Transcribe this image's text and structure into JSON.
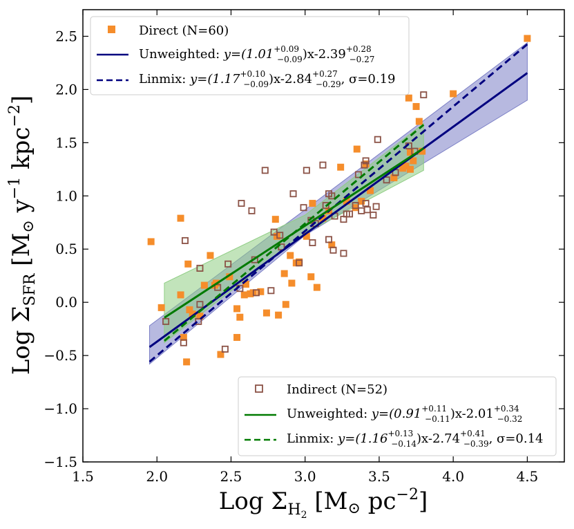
{
  "chart_data": {
    "type": "scatter",
    "xlabel": "Log Σ_H2 [M⊙ pc^-2]",
    "ylabel": "Log Σ_SFR [M⊙ y^-1 kpc^-2]",
    "xlim": [
      1.5,
      4.75
    ],
    "ylim": [
      -1.5,
      2.75
    ],
    "x_ticks": [
      1.5,
      2.0,
      2.5,
      3.0,
      3.5,
      4.0,
      4.5
    ],
    "y_ticks": [
      -1.5,
      -1.0,
      -0.5,
      0.0,
      0.5,
      1.0,
      1.5,
      2.0,
      2.5
    ],
    "x_tick_labels": [
      "1.5",
      "2.0",
      "2.5",
      "3.0",
      "3.5",
      "4.0",
      "4.5"
    ],
    "y_tick_labels": [
      "−1.5",
      "−1.0",
      "−0.5",
      "0.0",
      "0.5",
      "1.0",
      "1.5",
      "2.0",
      "2.5"
    ],
    "colors": {
      "direct": "#f58d2b",
      "indirect": "#8b5246",
      "navy": "#00007f",
      "green": "#007a00",
      "navy_band": "#7b7fc6",
      "green_band": "#8fcd84"
    },
    "series": [
      {
        "name": "Direct (N=60)",
        "marker": "filled-square",
        "points": [
          [
            1.96,
            0.57
          ],
          [
            2.03,
            -0.05
          ],
          [
            2.16,
            0.79
          ],
          [
            2.16,
            0.07
          ],
          [
            2.18,
            -0.33
          ],
          [
            2.2,
            -0.56
          ],
          [
            2.21,
            0.36
          ],
          [
            2.22,
            -0.07
          ],
          [
            2.24,
            -0.11
          ],
          [
            2.29,
            -0.13
          ],
          [
            2.32,
            0.16
          ],
          [
            2.36,
            0.44
          ],
          [
            2.39,
            0.16
          ],
          [
            2.4,
            0.18
          ],
          [
            2.43,
            -0.49
          ],
          [
            2.49,
            0.24
          ],
          [
            2.54,
            -0.33
          ],
          [
            2.54,
            -0.06
          ],
          [
            2.56,
            -0.14
          ],
          [
            2.59,
            0.07
          ],
          [
            2.6,
            0.17
          ],
          [
            2.63,
            0.08
          ],
          [
            2.65,
            0.09
          ],
          [
            2.7,
            0.1
          ],
          [
            2.74,
            -0.1
          ],
          [
            2.8,
            0.78
          ],
          [
            2.81,
            0.62
          ],
          [
            2.82,
            -0.12
          ],
          [
            2.86,
            0.27
          ],
          [
            2.87,
            -0.02
          ],
          [
            2.9,
            0.44
          ],
          [
            2.91,
            0.18
          ],
          [
            2.94,
            0.37
          ],
          [
            2.96,
            0.38
          ],
          [
            3.01,
            0.62
          ],
          [
            3.04,
            0.24
          ],
          [
            3.05,
            0.93
          ],
          [
            3.08,
            0.14
          ],
          [
            3.12,
            0.79
          ],
          [
            3.16,
            0.86
          ],
          [
            3.18,
            0.54
          ],
          [
            3.24,
            1.27
          ],
          [
            3.28,
            0.95
          ],
          [
            3.34,
            0.89
          ],
          [
            3.35,
            1.44
          ],
          [
            3.38,
            0.95
          ],
          [
            3.41,
            1.3
          ],
          [
            3.44,
            1.05
          ],
          [
            3.6,
            1.17
          ],
          [
            3.66,
            1.26
          ],
          [
            3.68,
            1.28
          ],
          [
            3.7,
            1.92
          ],
          [
            3.71,
            1.41
          ],
          [
            3.71,
            1.25
          ],
          [
            3.73,
            1.33
          ],
          [
            3.75,
            1.84
          ],
          [
            3.77,
            1.7
          ],
          [
            3.79,
            1.42
          ],
          [
            4.0,
            1.96
          ],
          [
            4.5,
            2.48
          ]
        ]
      },
      {
        "name": "Indirect (N=52)",
        "marker": "open-square",
        "points": [
          [
            2.06,
            -0.18
          ],
          [
            2.18,
            -0.38
          ],
          [
            2.19,
            0.58
          ],
          [
            2.28,
            -0.18
          ],
          [
            2.29,
            0.32
          ],
          [
            2.29,
            -0.02
          ],
          [
            2.41,
            0.14
          ],
          [
            2.46,
            -0.44
          ],
          [
            2.48,
            0.36
          ],
          [
            2.56,
            0.13
          ],
          [
            2.57,
            0.93
          ],
          [
            2.64,
            0.86
          ],
          [
            2.66,
            0.4
          ],
          [
            2.67,
            0.09
          ],
          [
            2.73,
            1.24
          ],
          [
            2.77,
            0.11
          ],
          [
            2.79,
            0.66
          ],
          [
            2.83,
            0.63
          ],
          [
            2.84,
            0.52
          ],
          [
            2.92,
            1.02
          ],
          [
            2.96,
            0.37
          ],
          [
            2.99,
            0.89
          ],
          [
            3.01,
            1.24
          ],
          [
            3.04,
            0.77
          ],
          [
            3.05,
            0.56
          ],
          [
            3.07,
            0.74
          ],
          [
            3.12,
            1.29
          ],
          [
            3.14,
            0.91
          ],
          [
            3.16,
            0.59
          ],
          [
            3.16,
            1.02
          ],
          [
            3.18,
            1.0
          ],
          [
            3.19,
            0.49
          ],
          [
            3.2,
            0.81
          ],
          [
            3.26,
            0.46
          ],
          [
            3.26,
            0.78
          ],
          [
            3.28,
            0.83
          ],
          [
            3.3,
            0.83
          ],
          [
            3.34,
            0.91
          ],
          [
            3.36,
            1.2
          ],
          [
            3.38,
            0.86
          ],
          [
            3.4,
            1.29
          ],
          [
            3.41,
            1.33
          ],
          [
            3.41,
            0.93
          ],
          [
            3.42,
            0.87
          ],
          [
            3.46,
            0.82
          ],
          [
            3.48,
            0.9
          ],
          [
            3.49,
            1.53
          ],
          [
            3.55,
            1.15
          ],
          [
            3.61,
            1.22
          ],
          [
            3.7,
            1.47
          ],
          [
            3.74,
            1.42
          ],
          [
            3.8,
            1.95
          ]
        ]
      }
    ],
    "fits": [
      {
        "name": "Direct unweighted",
        "style": "solid",
        "color": "navy",
        "slope": 1.01,
        "intercept": -2.39,
        "x_range": [
          1.95,
          4.5
        ]
      },
      {
        "name": "Direct linmix",
        "style": "dashed",
        "color": "navy",
        "slope": 1.17,
        "intercept": -2.84,
        "x_range": [
          1.95,
          4.5
        ]
      },
      {
        "name": "Indirect unweighted",
        "style": "solid",
        "color": "green",
        "slope": 0.91,
        "intercept": -2.01,
        "x_range": [
          2.05,
          3.8
        ]
      },
      {
        "name": "Indirect linmix",
        "style": "dashed",
        "color": "green",
        "slope": 1.16,
        "intercept": -2.74,
        "x_range": [
          2.05,
          3.8
        ]
      }
    ],
    "bands": [
      {
        "name": "Direct confidence band",
        "color": "navy_band",
        "upper": [
          [
            1.95,
            -0.22
          ],
          [
            3.0,
            0.87
          ],
          [
            4.5,
            2.44
          ]
        ],
        "lower": [
          [
            1.95,
            -0.58
          ],
          [
            3.0,
            0.63
          ],
          [
            4.5,
            1.9
          ]
        ]
      },
      {
        "name": "Indirect confidence band",
        "color": "green_band",
        "upper": [
          [
            2.05,
            0.18
          ],
          [
            3.0,
            0.82
          ],
          [
            3.8,
            1.68
          ]
        ],
        "lower": [
          [
            2.05,
            -0.38
          ],
          [
            3.0,
            0.65
          ],
          [
            3.8,
            1.24
          ]
        ]
      }
    ],
    "legend_direct": {
      "title": "Direct (N=60)",
      "unweighted": {
        "label": "Unweighted: ",
        "eq": "y=(1.01",
        "sup": "+0.09",
        "sub": "−0.09",
        "mid": ")x-2.39",
        "sup2": "+0.28",
        "sub2": "−0.27",
        "tail": ""
      },
      "linmix": {
        "label": "Linmix: ",
        "eq": "y=(1.17",
        "sup": "+0.10",
        "sub": "−0.09",
        "mid": ")x-2.84",
        "sup2": "+0.27",
        "sub2": "−0.29",
        "tail": ", σ=0.19"
      }
    },
    "legend_indirect": {
      "title": "Indirect (N=52)",
      "unweighted": {
        "label": "Unweighted: ",
        "eq": "y=(0.91",
        "sup": "+0.11",
        "sub": "−0.11",
        "mid": ")x-2.01",
        "sup2": "+0.34",
        "sub2": "−0.32",
        "tail": ""
      },
      "linmix": {
        "label": "Linmix: ",
        "eq": "y=(1.16",
        "sup": "+0.13",
        "sub": "−0.14",
        "mid": ")x-2.74",
        "sup2": "+0.41",
        "sub2": "−0.39",
        "tail": ", σ=0.14"
      }
    },
    "axis_labels": {
      "x": {
        "pre": "Log Σ",
        "sub": "H",
        "subsub": "2",
        "post": " [M",
        "odot": "⊙",
        "post2": " pc",
        "sup": "−2",
        "end": "]"
      },
      "y": {
        "pre": "Log Σ",
        "sub": "SFR",
        "post": " [M",
        "odot": "⊙",
        "post2": " y",
        "sup": "−1",
        "post3": " kpc",
        "sup2": "−2",
        "end": "]"
      }
    }
  }
}
